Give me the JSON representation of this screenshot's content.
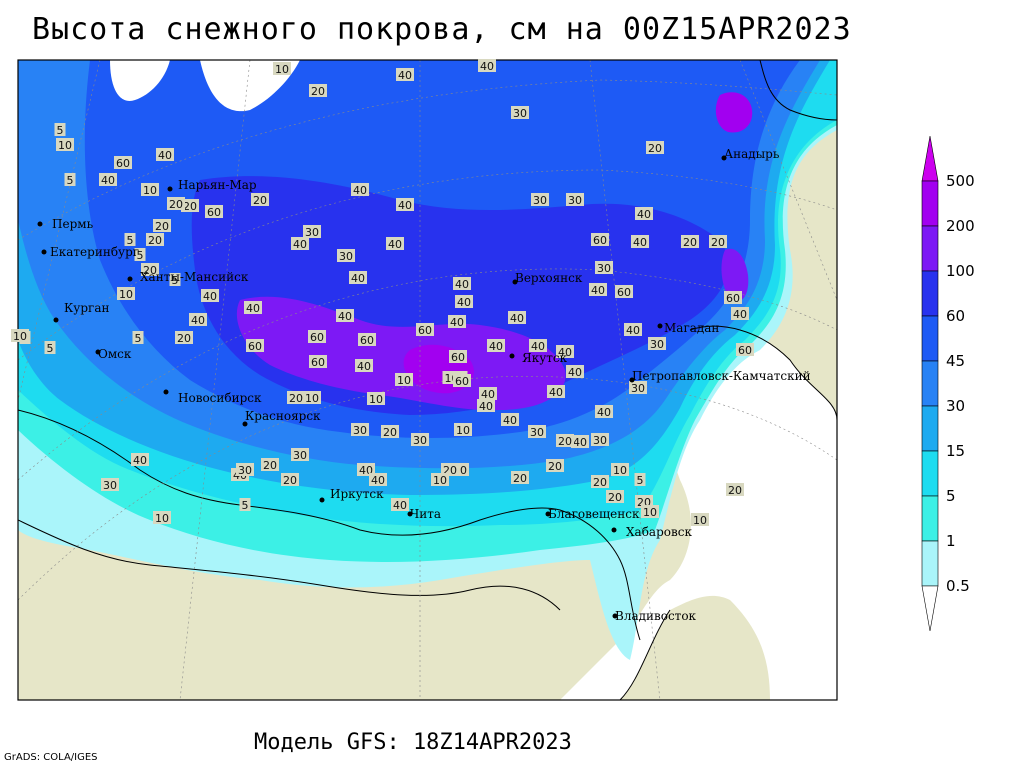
{
  "title": "Высота снежного покрова, см на 00Z15APR2023",
  "subtitle": "Модель GFS: 18Z14APR2023",
  "credit": "GrADS: COLA/IGES",
  "legend": {
    "levels": [
      {
        "label": "500",
        "color": "#cc00ee"
      },
      {
        "label": "200",
        "color": "#a200f0"
      },
      {
        "label": "100",
        "color": "#7d19f5"
      },
      {
        "label": "60",
        "color": "#2832ee"
      },
      {
        "label": "45",
        "color": "#1e5af5"
      },
      {
        "label": "30",
        "color": "#2882f5"
      },
      {
        "label": "15",
        "color": "#1eaaf0"
      },
      {
        "label": "5",
        "color": "#1edcf0"
      },
      {
        "label": "1",
        "color": "#3cf0e6"
      },
      {
        "label": "0.5",
        "color": "#aaf5fa"
      }
    ]
  },
  "colors": {
    "land": "#e6e6c8",
    "sea": "#ffffff"
  },
  "cities": [
    {
      "name": "Пермь"
    },
    {
      "name": "Екатеринбург"
    },
    {
      "name": "Курган"
    },
    {
      "name": "Омск"
    },
    {
      "name": "Новосибирск"
    },
    {
      "name": "Красноярск"
    },
    {
      "name": "Иркутск"
    },
    {
      "name": "Чита"
    },
    {
      "name": "Благовещенск"
    },
    {
      "name": "Хабаровск"
    },
    {
      "name": "Владивосток"
    },
    {
      "name": "Якутск"
    },
    {
      "name": "Верхоянск"
    },
    {
      "name": "Магадан"
    },
    {
      "name": "Петропавловск-Камчатский"
    },
    {
      "name": "Анадырь"
    },
    {
      "name": "Ханты-Мансийск"
    },
    {
      "name": "Нарьян-Мар"
    }
  ],
  "contour_labels": [
    "10",
    "20",
    "40",
    "40",
    "40",
    "40",
    "30",
    "30",
    "30",
    "20",
    "40",
    "60",
    "40",
    "60",
    "40",
    "40",
    "40",
    "40",
    "60",
    "40",
    "40",
    "20",
    "20",
    "20",
    "40",
    "40",
    "40",
    "60",
    "40",
    "40",
    "40",
    "40",
    "60",
    "40",
    "60",
    "60",
    "60",
    "100",
    "60",
    "60",
    "40",
    "40",
    "40",
    "40",
    "40",
    "40",
    "40",
    "30",
    "60",
    "40",
    "60",
    "40",
    "60",
    "40",
    "30",
    "30",
    "40",
    "40",
    "30",
    "30",
    "20",
    "20",
    "10",
    "10",
    "10",
    "20",
    "20",
    "20",
    "20",
    "20",
    "20",
    "20",
    "10",
    "20",
    "5",
    "5",
    "5",
    "10",
    "10",
    "20",
    "5",
    "5",
    "5",
    "10",
    "10",
    "5",
    "5",
    "20",
    "20",
    "20",
    "30",
    "30",
    "20",
    "20",
    "40",
    "30",
    "30",
    "30",
    "40",
    "20",
    "30",
    "5",
    "10",
    "30",
    "40",
    "40",
    "40",
    "40",
    "20",
    "10",
    "5",
    "10",
    "20",
    "10",
    "10"
  ]
}
